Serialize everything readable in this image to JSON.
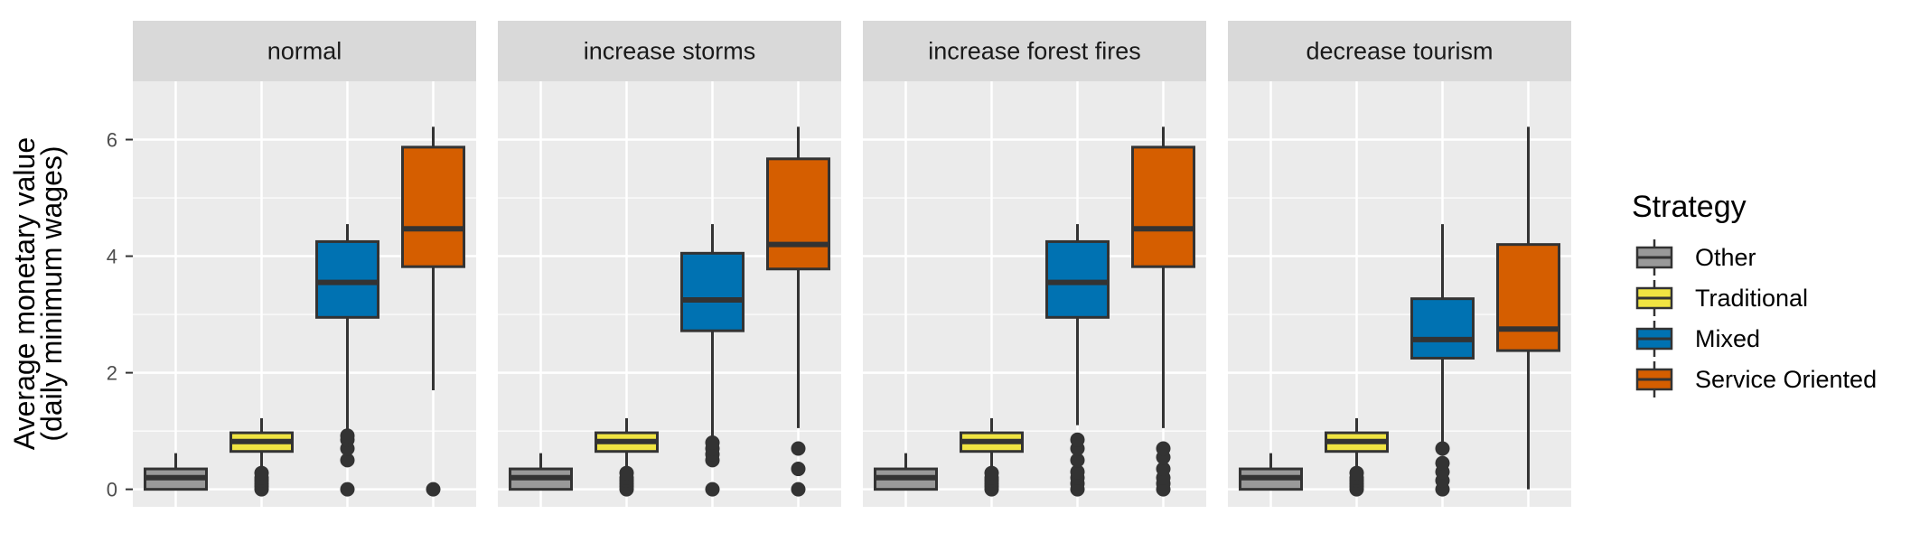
{
  "chart_data": {
    "type": "boxplot",
    "ylabel_lines": [
      "Average monetary value",
      "(daily minimum wages)"
    ],
    "xlabel": "",
    "ylim": [
      -0.3,
      7.0
    ],
    "yticks": [
      0,
      2,
      4,
      6
    ],
    "grid": true,
    "legend": {
      "title": "Strategy",
      "placement": "right",
      "entries": [
        "Other",
        "Traditional",
        "Mixed",
        "Service Oriented"
      ]
    },
    "series_colors": {
      "Other": "#999999",
      "Traditional": "#f0e442",
      "Mixed": "#0072b2",
      "Service Oriented": "#d55e00"
    },
    "panels": [
      {
        "title": "normal",
        "boxes": [
          {
            "group": "Other",
            "whisker_low": 0,
            "q1": 0,
            "median": 0.2,
            "q3": 0.35,
            "whisker_high": 0.62,
            "outliers": []
          },
          {
            "group": "Traditional",
            "whisker_low": 0.35,
            "q1": 0.65,
            "median": 0.82,
            "q3": 0.97,
            "whisker_high": 1.22,
            "outliers": [
              0,
              0.05,
              0.1,
              0.15,
              0.2,
              0.28
            ]
          },
          {
            "group": "Mixed",
            "whisker_low": 0.95,
            "q1": 2.95,
            "median": 3.55,
            "q3": 4.25,
            "whisker_high": 4.55,
            "outliers": [
              0,
              0.5,
              0.7,
              0.85,
              0.92
            ]
          },
          {
            "group": "Service Oriented",
            "whisker_low": 1.7,
            "q1": 3.82,
            "median": 4.47,
            "q3": 5.87,
            "whisker_high": 6.22,
            "outliers": [
              0
            ]
          }
        ]
      },
      {
        "title": "increase storms",
        "boxes": [
          {
            "group": "Other",
            "whisker_low": 0,
            "q1": 0,
            "median": 0.2,
            "q3": 0.35,
            "whisker_high": 0.62,
            "outliers": []
          },
          {
            "group": "Traditional",
            "whisker_low": 0.35,
            "q1": 0.65,
            "median": 0.82,
            "q3": 0.97,
            "whisker_high": 1.22,
            "outliers": [
              0,
              0.05,
              0.1,
              0.15,
              0.2,
              0.28
            ]
          },
          {
            "group": "Mixed",
            "whisker_low": 0.85,
            "q1": 2.72,
            "median": 3.25,
            "q3": 4.05,
            "whisker_high": 4.55,
            "outliers": [
              0,
              0.5,
              0.6,
              0.7,
              0.8
            ]
          },
          {
            "group": "Service Oriented",
            "whisker_low": 1.05,
            "q1": 3.78,
            "median": 4.2,
            "q3": 5.67,
            "whisker_high": 6.22,
            "outliers": [
              0,
              0.35,
              0.7
            ]
          }
        ]
      },
      {
        "title": "increase forest fires",
        "boxes": [
          {
            "group": "Other",
            "whisker_low": 0,
            "q1": 0,
            "median": 0.2,
            "q3": 0.35,
            "whisker_high": 0.62,
            "outliers": []
          },
          {
            "group": "Traditional",
            "whisker_low": 0.35,
            "q1": 0.65,
            "median": 0.82,
            "q3": 0.97,
            "whisker_high": 1.22,
            "outliers": [
              0,
              0.05,
              0.1,
              0.15,
              0.2,
              0.28
            ]
          },
          {
            "group": "Mixed",
            "whisker_low": 1.1,
            "q1": 2.95,
            "median": 3.55,
            "q3": 4.25,
            "whisker_high": 4.55,
            "outliers": [
              0,
              0.1,
              0.2,
              0.3,
              0.5,
              0.7,
              0.85
            ]
          },
          {
            "group": "Service Oriented",
            "whisker_low": 1.05,
            "q1": 3.82,
            "median": 4.47,
            "q3": 5.87,
            "whisker_high": 6.22,
            "outliers": [
              0,
              0.1,
              0.2,
              0.35,
              0.55,
              0.7
            ]
          }
        ]
      },
      {
        "title": "decrease tourism",
        "boxes": [
          {
            "group": "Other",
            "whisker_low": 0,
            "q1": 0,
            "median": 0.2,
            "q3": 0.35,
            "whisker_high": 0.62,
            "outliers": []
          },
          {
            "group": "Traditional",
            "whisker_low": 0.35,
            "q1": 0.65,
            "median": 0.82,
            "q3": 0.97,
            "whisker_high": 1.22,
            "outliers": [
              0,
              0.05,
              0.1,
              0.15,
              0.2,
              0.28
            ]
          },
          {
            "group": "Mixed",
            "whisker_low": 0.8,
            "q1": 2.25,
            "median": 2.57,
            "q3": 3.27,
            "whisker_high": 4.55,
            "outliers": [
              0,
              0.15,
              0.3,
              0.45,
              0.7
            ]
          },
          {
            "group": "Service Oriented",
            "whisker_low": 0,
            "q1": 2.38,
            "median": 2.75,
            "q3": 4.2,
            "whisker_high": 6.22,
            "outliers": []
          }
        ]
      }
    ]
  }
}
